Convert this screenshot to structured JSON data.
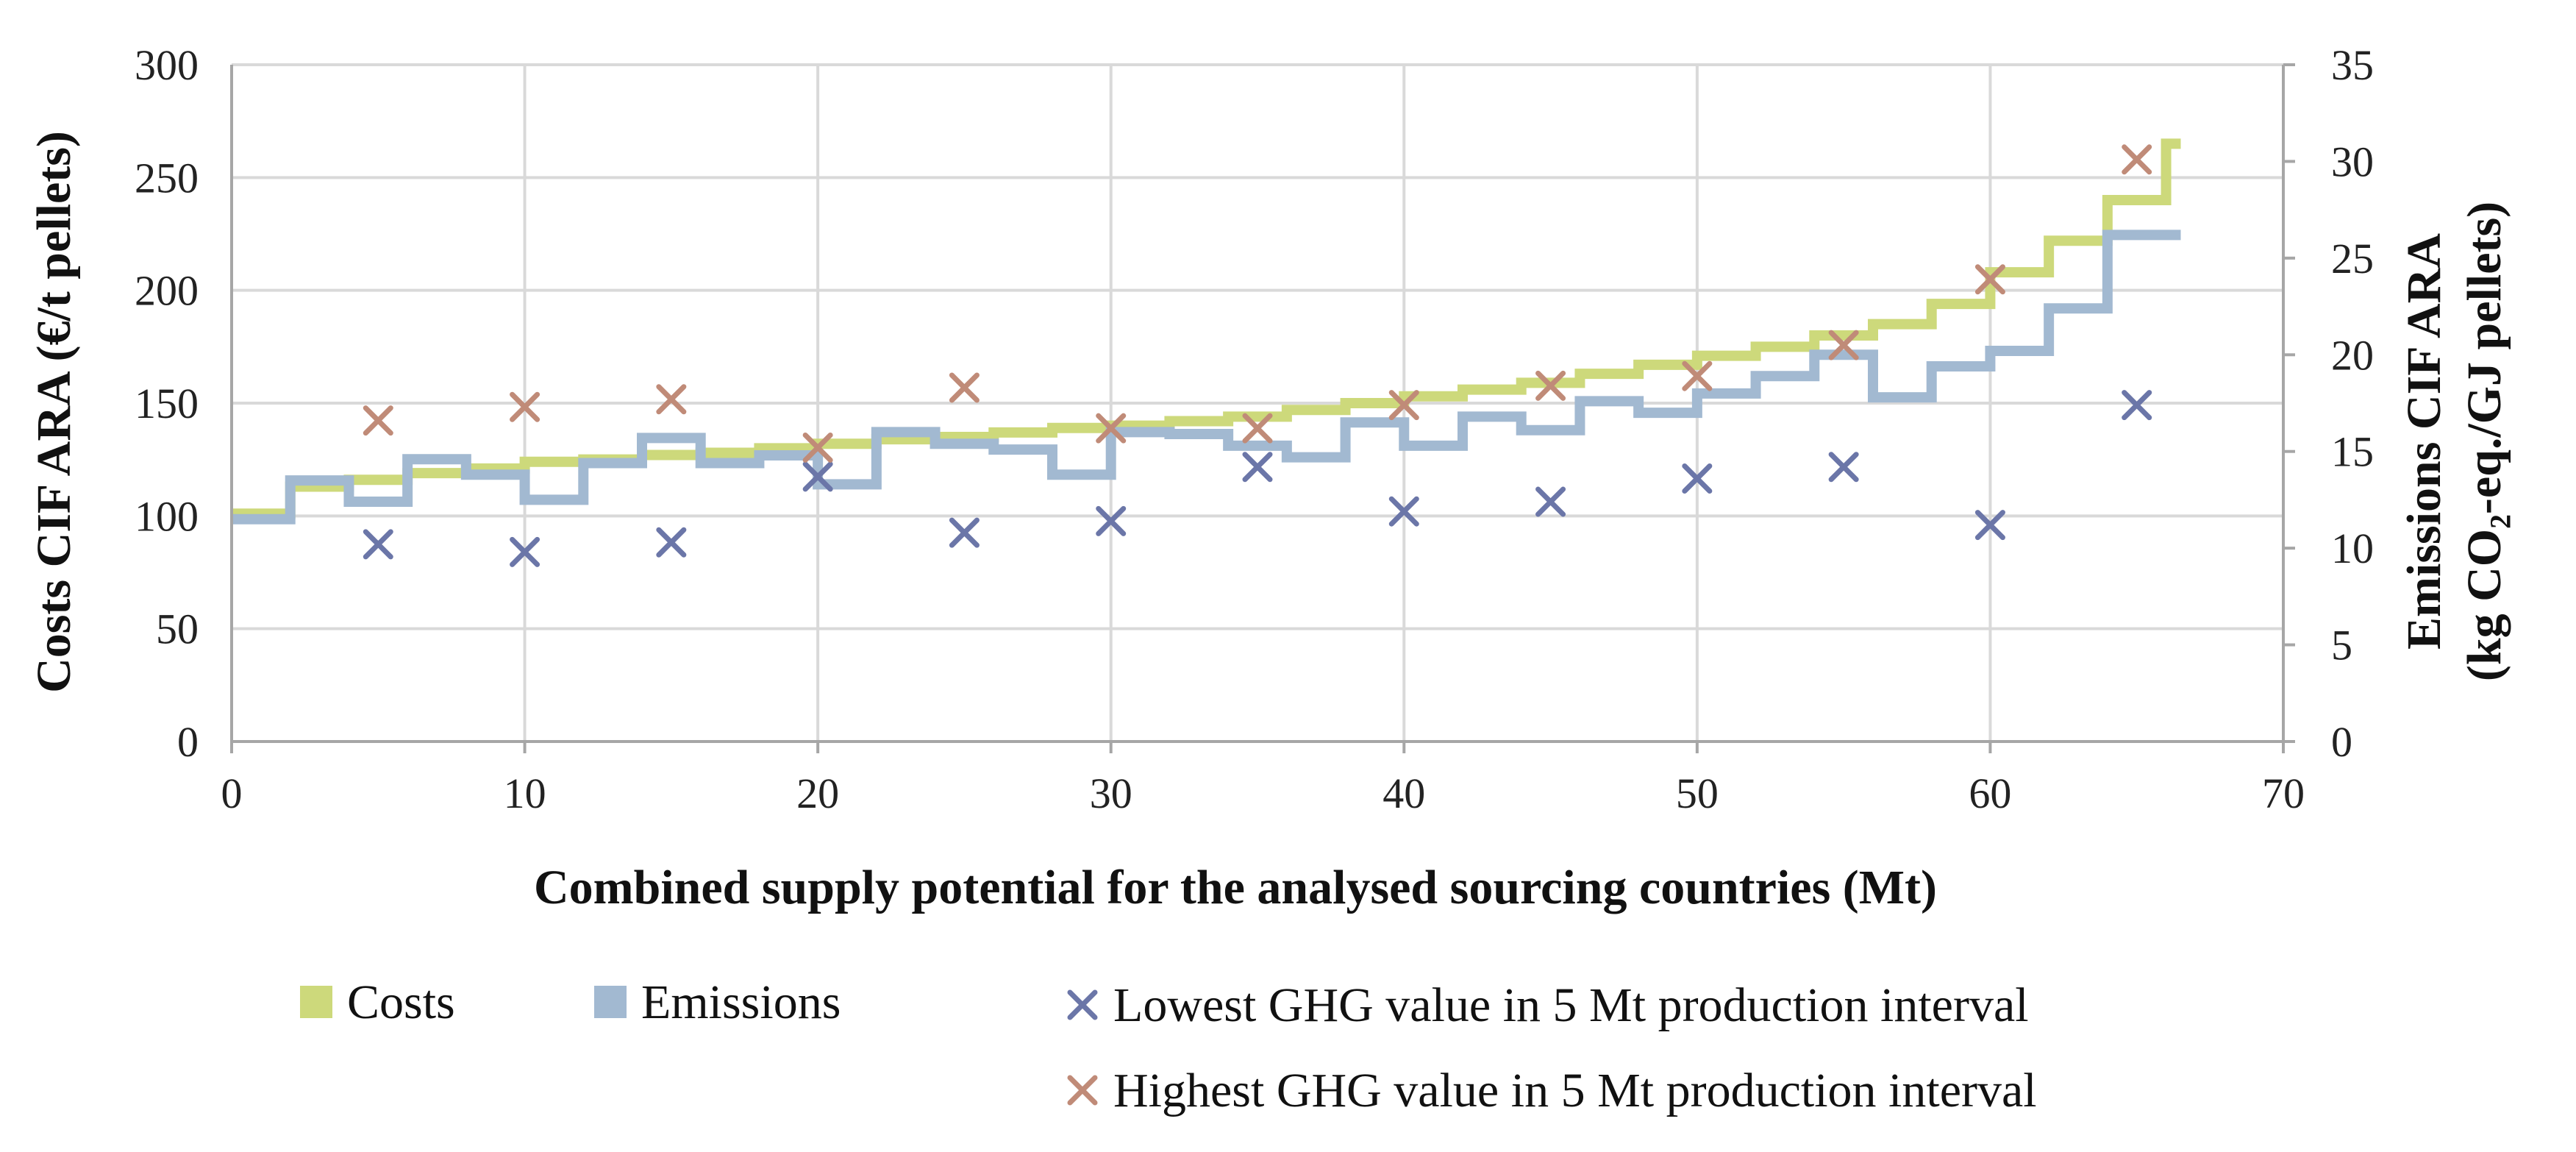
{
  "chart_data": {
    "type": "step-line-scatter",
    "title": "",
    "xlabel": "Combined supply potential for the analysed sourcing countries (Mt)",
    "ylabel_left": "Costs CIF ARA (€/t pellets)",
    "ylabel_right_line1": "Emissions CIF ARA",
    "ylabel_right_line2": "(kg CO₂-eq./GJ pellets)",
    "xlim": [
      0,
      70
    ],
    "x_ticks": [
      0,
      10,
      20,
      30,
      40,
      50,
      60,
      70
    ],
    "ylim_left": [
      0,
      300
    ],
    "y_left_ticks": [
      0,
      50,
      100,
      150,
      200,
      250,
      300
    ],
    "ylim_right": [
      0,
      35
    ],
    "y_right_ticks": [
      0,
      5,
      10,
      15,
      20,
      25,
      30,
      35
    ],
    "grid": true,
    "legend_position": "bottom",
    "series": [
      {
        "name": "Costs",
        "kind": "step",
        "axis": "left",
        "color": "#cdd97b",
        "x": [
          0,
          2,
          4,
          6,
          8,
          10,
          12,
          14,
          16,
          18,
          20,
          22,
          24,
          26,
          28,
          30,
          32,
          34,
          36,
          38,
          40,
          42,
          44,
          46,
          48,
          50,
          52,
          54,
          56,
          58,
          60,
          62,
          64,
          66
        ],
        "y": [
          101,
          113,
          116,
          119,
          121,
          124,
          125,
          127,
          128,
          130,
          132,
          134,
          135,
          137,
          139,
          140,
          142,
          144,
          147,
          150,
          153,
          156,
          159,
          163,
          167,
          171,
          175,
          180,
          185,
          194,
          208,
          222,
          240,
          265
        ]
      },
      {
        "name": "Emissions",
        "kind": "step",
        "axis": "right",
        "color": "#a2b9d1",
        "x": [
          0,
          2,
          4,
          6,
          8,
          10,
          12,
          14,
          16,
          18,
          20,
          22,
          24,
          26,
          28,
          30,
          32,
          34,
          36,
          38,
          40,
          42,
          44,
          46,
          48,
          50,
          52,
          54,
          56,
          58,
          60,
          62,
          64,
          66
        ],
        "y": [
          11.5,
          13.5,
          12.4,
          14.6,
          13.8,
          12.5,
          14.4,
          15.7,
          14.4,
          14.8,
          13.3,
          16.0,
          15.4,
          15.1,
          13.8,
          16.0,
          15.9,
          15.3,
          14.7,
          16.5,
          15.3,
          16.8,
          16.1,
          17.6,
          17.0,
          18.0,
          18.9,
          20.0,
          17.8,
          19.4,
          20.2,
          22.4,
          26.2,
          26.2
        ]
      },
      {
        "name": "Lowest GHG value in 5 Mt production interval",
        "kind": "scatter",
        "axis": "right",
        "color": "#6b76a8",
        "x": [
          5,
          10,
          15,
          20,
          25,
          30,
          35,
          40,
          45,
          50,
          55,
          60,
          65
        ],
        "y": [
          10.2,
          9.8,
          10.3,
          13.7,
          10.8,
          11.4,
          14.2,
          11.9,
          12.4,
          13.6,
          14.2,
          11.2,
          17.4
        ]
      },
      {
        "name": "Highest GHG value in 5 Mt production interval",
        "kind": "scatter",
        "axis": "right",
        "color": "#c08b78",
        "x": [
          5,
          10,
          15,
          20,
          25,
          30,
          35,
          40,
          45,
          50,
          55,
          60,
          65
        ],
        "y": [
          16.6,
          17.3,
          17.7,
          15.2,
          18.3,
          16.2,
          16.2,
          17.4,
          18.4,
          18.9,
          20.5,
          23.9,
          30.1
        ]
      }
    ]
  }
}
